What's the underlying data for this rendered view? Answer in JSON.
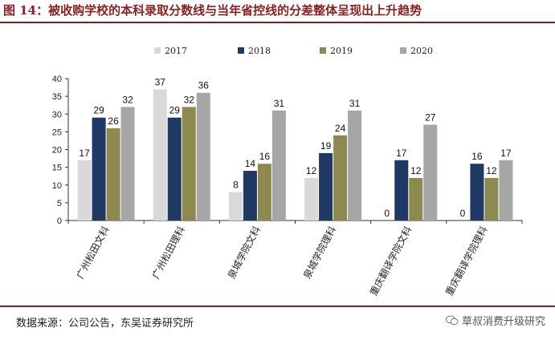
{
  "title": "图 14：被收购学校的本科录取分数线与当年省控线的分差整体呈现出上升趋势",
  "source": "数据来源：公司公告，东吴证券研究所",
  "watermark": "草叔消费升级研究",
  "colors": {
    "s2017": "#d9d9d9",
    "s2018": "#1f3864",
    "s2019": "#8e8a4f",
    "s2020": "#a6a6a6",
    "accent": "#8a1f1f"
  },
  "chart_data": {
    "type": "bar",
    "title": "",
    "xlabel": "",
    "ylabel": "",
    "ylim": [
      0,
      40
    ],
    "yticks": [
      0,
      5,
      10,
      15,
      20,
      25,
      30,
      35,
      40
    ],
    "legend": "top",
    "categories": [
      "广州松田文科",
      "广州松田理科",
      "泉城学院文科",
      "泉城学院理科",
      "重庆翻译学院文科",
      "重庆翻译学院理科"
    ],
    "series": [
      {
        "name": "2017",
        "values": [
          17,
          37,
          8,
          12,
          0,
          0
        ]
      },
      {
        "name": "2018",
        "values": [
          29,
          29,
          14,
          19,
          17,
          16
        ]
      },
      {
        "name": "2019",
        "values": [
          26,
          32,
          16,
          24,
          12,
          12
        ]
      },
      {
        "name": "2020",
        "values": [
          32,
          36,
          31,
          31,
          27,
          17
        ]
      }
    ]
  }
}
